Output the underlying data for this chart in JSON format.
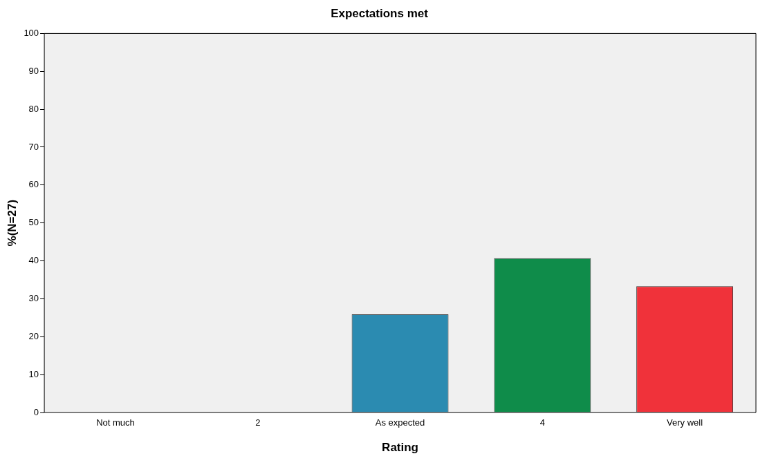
{
  "chart_data": {
    "type": "bar",
    "title": "Expectations met",
    "xlabel": "Rating",
    "ylabel": "%(N=27)",
    "categories": [
      "Not much",
      "2",
      "As expected",
      "4",
      "Very well"
    ],
    "values": [
      0,
      0,
      25.9,
      40.7,
      33.3
    ],
    "colors": [
      "#2b8bb1",
      "#2b8bb1",
      "#2b8bb1",
      "#0f8c4a",
      "#f0323a"
    ],
    "ylim": [
      0,
      100
    ],
    "yticks": [
      0,
      10,
      20,
      30,
      40,
      50,
      60,
      70,
      80,
      90,
      100
    ],
    "grid": false,
    "legend": false
  }
}
